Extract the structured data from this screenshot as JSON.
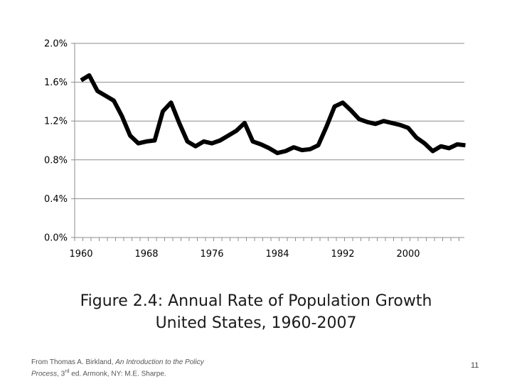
{
  "chart_data": {
    "type": "line",
    "title": "",
    "xlabel": "",
    "ylabel": "",
    "ylim": [
      0,
      2.0
    ],
    "xlim": [
      1960,
      2007
    ],
    "y_ticks": [
      "0.0%",
      "0.4%",
      "0.8%",
      "1.2%",
      "1.6%",
      "2.0%"
    ],
    "x_ticks": [
      "1960",
      "1968",
      "1976",
      "1984",
      "1992",
      "2000"
    ],
    "grid": "horizontal",
    "legend": "none",
    "line_color": "#000000",
    "series": [
      {
        "x": [
          1960,
          1961,
          1962,
          1963,
          1964,
          1965,
          1966,
          1967,
          1968,
          1969,
          1970,
          1971,
          1972,
          1973,
          1974,
          1975,
          1976,
          1977,
          1978,
          1979,
          1980,
          1981,
          1982,
          1983,
          1984,
          1985,
          1986,
          1987,
          1988,
          1989,
          1990,
          1991,
          1992,
          1993,
          1994,
          1995,
          1996,
          1997,
          1998,
          1999,
          2000,
          2001,
          2002,
          2003,
          2004,
          2005,
          2006,
          2007
        ],
        "values": [
          1.62,
          1.67,
          1.51,
          1.46,
          1.41,
          1.25,
          1.05,
          0.97,
          0.99,
          1.0,
          1.3,
          1.39,
          1.18,
          0.99,
          0.94,
          0.99,
          0.97,
          1.0,
          1.05,
          1.1,
          1.18,
          0.99,
          0.96,
          0.92,
          0.87,
          0.89,
          0.93,
          0.9,
          0.91,
          0.95,
          1.14,
          1.35,
          1.39,
          1.31,
          1.22,
          1.19,
          1.17,
          1.2,
          1.18,
          1.16,
          1.13,
          1.03,
          0.97,
          0.89,
          0.94,
          0.92,
          0.96,
          0.95
        ]
      }
    ]
  },
  "caption": {
    "line1": "Figure 2.4: Annual Rate of Population Growth",
    "line2": "United States, 1960-2007"
  },
  "source": {
    "prefix": "From Thomas A. Birkland, ",
    "book_italic_1": "An Introduction to the Policy",
    "book_italic_2": "Process",
    "edition_num": ", 3",
    "edition_sup": "rd",
    "suffix": " ed. Armonk, NY: M.E. Sharpe."
  },
  "page_number": "11"
}
